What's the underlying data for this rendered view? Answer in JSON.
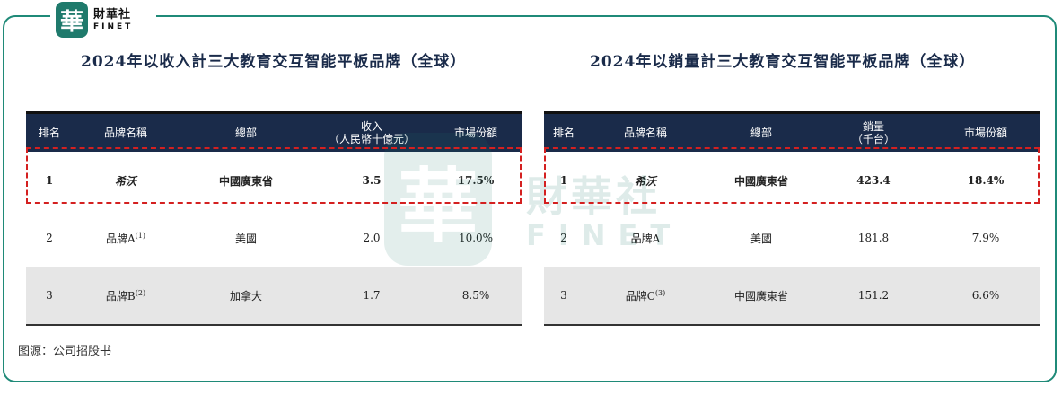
{
  "logo": {
    "mark": "華",
    "cn": "財華社",
    "en": "FINET"
  },
  "watermark": {
    "mark": "華",
    "cn": "財華社",
    "en": "FINET"
  },
  "left_table": {
    "title": "2024年以收入計三大教育交互智能平板品牌（全球）",
    "headers": [
      "排名",
      "品牌名稱",
      "總部",
      "收入\n（人民幣十億元）",
      "市場份額"
    ],
    "rows": [
      {
        "rank": "1",
        "brand": "希沃",
        "brand_sup": "",
        "hq": "中國廣東省",
        "value": "3.5",
        "share": "17.5%"
      },
      {
        "rank": "2",
        "brand": "品牌A",
        "brand_sup": "(1)",
        "hq": "美國",
        "value": "2.0",
        "share": "10.0%"
      },
      {
        "rank": "3",
        "brand": "品牌B",
        "brand_sup": "(2)",
        "hq": "加拿大",
        "value": "1.7",
        "share": "8.5%"
      }
    ]
  },
  "right_table": {
    "title": "2024年以銷量計三大教育交互智能平板品牌（全球）",
    "headers": [
      "排名",
      "品牌名稱",
      "總部",
      "銷量\n（千台）",
      "市場份額"
    ],
    "rows": [
      {
        "rank": "1",
        "brand": "希沃",
        "brand_sup": "",
        "hq": "中國廣東省",
        "value": "423.4",
        "share": "18.4%"
      },
      {
        "rank": "2",
        "brand": "品牌A",
        "brand_sup": "",
        "hq": "美國",
        "value": "181.8",
        "share": "7.9%"
      },
      {
        "rank": "3",
        "brand": "品牌C",
        "brand_sup": "(3)",
        "hq": "中國廣東省",
        "value": "151.2",
        "share": "6.6%"
      }
    ]
  },
  "source": "图源：公司招股书",
  "colors": {
    "frame": "#1f8a78",
    "header_bg": "#1a2b4a",
    "highlight": "#d42020",
    "shade": "#e6e6e6"
  }
}
